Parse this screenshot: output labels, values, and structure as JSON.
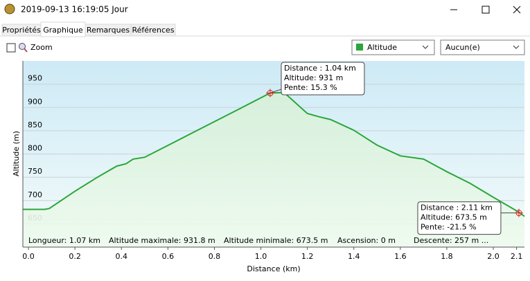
{
  "window": {
    "title": "2019-09-13 16:19:05 Jour"
  },
  "tabs": [
    "Propriétés",
    "Graphique",
    "Remarques",
    "Références"
  ],
  "active_tab": 1,
  "toolbar": {
    "zoom_label": "Zoom",
    "second_select": "Aucun(e)"
  },
  "chart_data": {
    "type": "line",
    "x_label": "Distance  (km)",
    "y_label": "Altitude (m)",
    "x": [
      -0.024,
      0.07,
      0.09,
      0.2,
      0.3,
      0.38,
      0.42,
      0.45,
      0.5,
      0.7,
      0.9,
      1.04,
      1.1,
      1.2,
      1.25,
      1.3,
      1.4,
      1.5,
      1.6,
      1.7,
      1.8,
      1.9,
      2.0,
      2.11,
      2.134
    ],
    "series": [
      {
        "name": "Altitude",
        "color": "#2aa63a",
        "values": [
          681,
          681,
          683,
          720,
          751,
          774,
          779,
          789,
          793,
          844,
          895,
          931,
          932,
          887,
          880,
          874,
          851,
          819,
          796,
          789,
          762,
          737,
          707,
          675,
          666
        ]
      }
    ],
    "xlim": [
      -0.024,
      2.134
    ],
    "ylim": [
      600,
      1000
    ],
    "xticks": [
      {
        "value": 0,
        "label": "0.0"
      },
      0.2,
      0.4,
      0.6,
      0.8,
      {
        "value": 1,
        "label": "1.0"
      },
      1.2,
      1.4,
      1.6,
      1.8,
      {
        "value": 2,
        "label": "2.0"
      },
      2.1
    ],
    "yticks": [
      650,
      700,
      750,
      800,
      850,
      900,
      950
    ],
    "grid": true,
    "markers": [
      {
        "x": 1.04,
        "y": 931,
        "lines": [
          "Distance : 1.04 km",
          "Altitude: 931 m",
          "Pente: 15.3 %"
        ]
      },
      {
        "x": 2.11,
        "y": 673.5,
        "lines": [
          "Distance : 2.11 km",
          "Altitude: 673.5 m",
          "Pente: -21.5 %"
        ]
      }
    ],
    "stats": [
      "Longueur: 1.07 km",
      "Altitude maximale: 931.8 m",
      "Altitude minimale: 673.5 m",
      "Ascension: 0 m",
      "Descente: 257 m ..."
    ]
  }
}
